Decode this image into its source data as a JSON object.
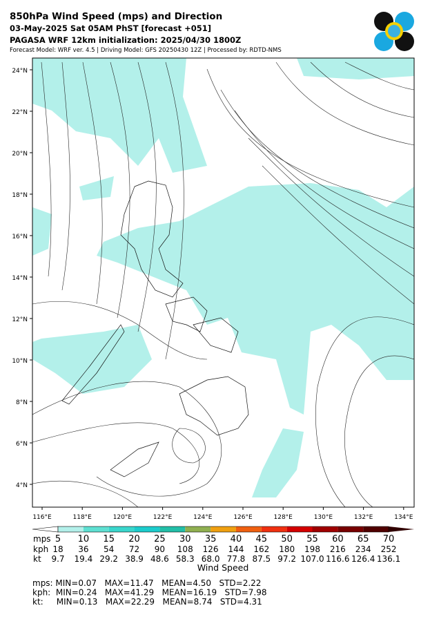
{
  "header": {
    "title": "850hPa Wind Speed (mps) and Direction",
    "line2": "03-May-2025 Sat 05AM PhST [forecast +051]",
    "line3": "PAGASA WRF 12km initialization: 2025/04/30 1800Z",
    "line4": "Forecast Model: WRF ver. 4.5 | Driving Model: GFS 20250430 12Z | Processed by: RDTD-NMS"
  },
  "map": {
    "lat_labels": [
      "24°N",
      "22°N",
      "20°N",
      "18°N",
      "16°N",
      "14°N",
      "12°N",
      "10°N",
      "8°N",
      "6°N",
      "4°N"
    ],
    "lon_labels": [
      "116°E",
      "118°E",
      "120°E",
      "122°E",
      "124°E",
      "126°E",
      "128°E",
      "130°E",
      "132°E",
      "134°E"
    ]
  },
  "colorbar": {
    "label": "Wind Speed",
    "rows": [
      "mps",
      "kph",
      "kt"
    ],
    "colors": [
      "#b3f0ea",
      "#5ee0d2",
      "#3ad6cc",
      "#1ccccc",
      "#22bfa8",
      "#90b050",
      "#f0a010",
      "#f06010",
      "#f03010",
      "#d40000",
      "#a00000",
      "#780000",
      "#500000",
      "#300000"
    ],
    "mps": [
      "5",
      "10",
      "15",
      "20",
      "25",
      "30",
      "35",
      "40",
      "45",
      "50",
      "55",
      "60",
      "65",
      "70"
    ],
    "kph": [
      "18",
      "36",
      "54",
      "72",
      "90",
      "108",
      "126",
      "144",
      "162",
      "180",
      "198",
      "216",
      "234",
      "252"
    ],
    "kt": [
      "9.7",
      "19.4",
      "29.2",
      "38.9",
      "48.6",
      "58.3",
      "68.0",
      "77.8",
      "87.5",
      "97.2",
      "107.0",
      "116.6",
      "126.4",
      "136.1"
    ]
  },
  "stats": [
    "mps: MIN=0.07   MAX=11.47   MEAN=4.50   STD=2.22",
    "kph:  MIN=0.24   MAX=41.29   MEAN=16.19   STD=7.98",
    "kt:     MIN=0.13   MAX=22.29   MEAN=8.74   STD=4.31"
  ]
}
